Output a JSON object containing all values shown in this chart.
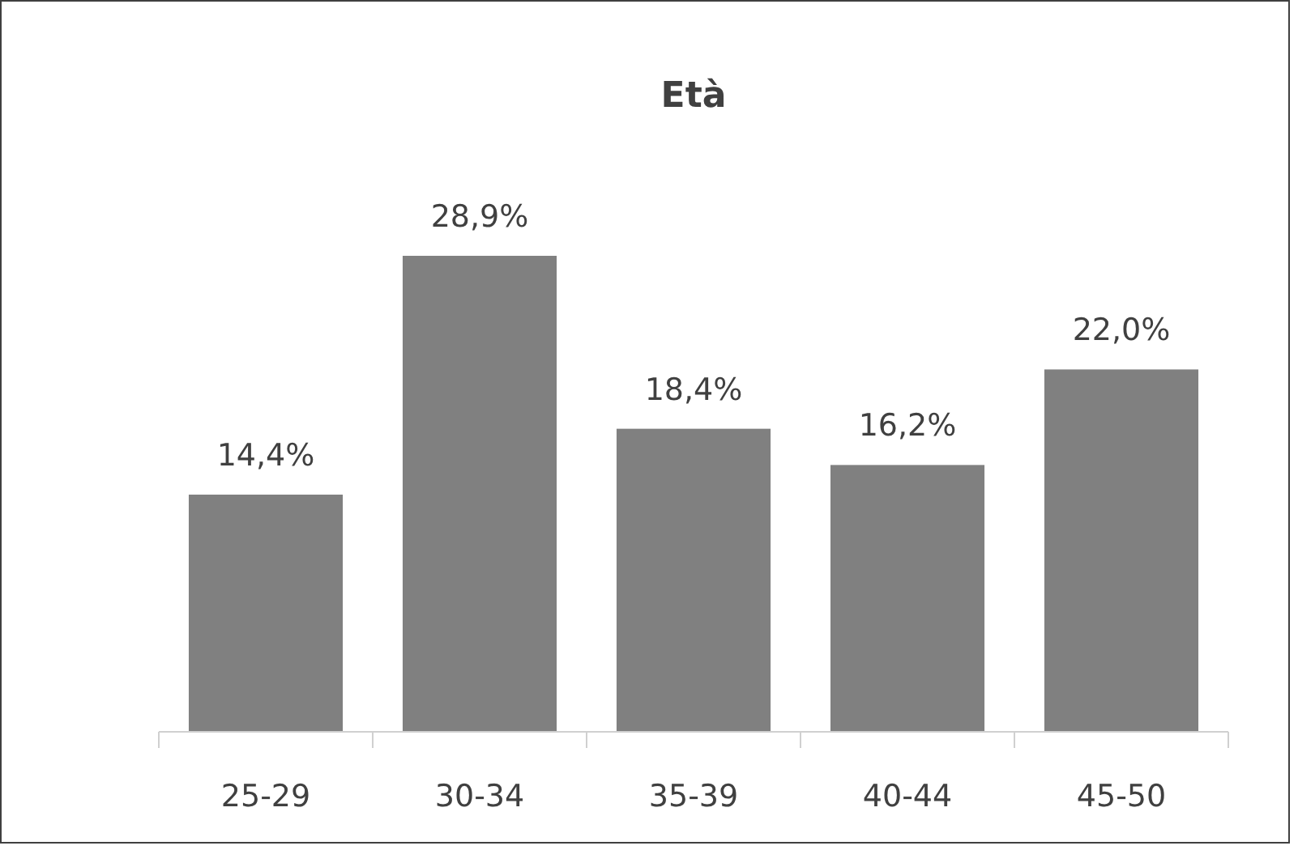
{
  "chart_data": {
    "type": "bar",
    "title": "Età",
    "categories": [
      "25-29",
      "30-34",
      "35-39",
      "40-44",
      "45-50"
    ],
    "values": [
      14.4,
      28.9,
      18.4,
      16.2,
      22.0
    ],
    "value_labels": [
      "14,4%",
      "28,9%",
      "18,4%",
      "16,2%",
      "22,0%"
    ],
    "color": "#808080"
  }
}
